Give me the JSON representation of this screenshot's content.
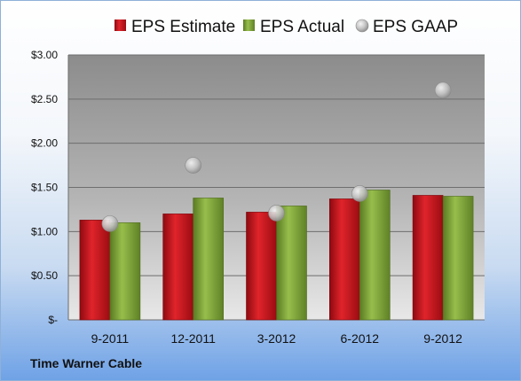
{
  "footer": {
    "company": "Time Warner Cable"
  },
  "colors": {
    "estimate": "#c8141e",
    "actual": "#7fa339",
    "gaap": "#bfbfbf"
  },
  "chart_data": {
    "type": "bar",
    "categories": [
      "9-2011",
      "12-2011",
      "3-2012",
      "6-2012",
      "9-2012"
    ],
    "series": [
      {
        "name": "EPS Estimate",
        "kind": "bar",
        "values": [
          1.13,
          1.2,
          1.22,
          1.37,
          1.41
        ]
      },
      {
        "name": "EPS Actual",
        "kind": "bar",
        "values": [
          1.1,
          1.38,
          1.29,
          1.47,
          1.4
        ]
      },
      {
        "name": "EPS GAAP",
        "kind": "scatter",
        "values": [
          1.09,
          1.75,
          1.21,
          1.43,
          2.6
        ]
      }
    ],
    "ylim": [
      0,
      3.0
    ],
    "yticks": [
      0,
      0.5,
      1.0,
      1.5,
      2.0,
      2.5,
      3.0
    ],
    "ytick_labels": [
      "$-",
      "$0.50",
      "$1.00",
      "$1.50",
      "$2.00",
      "$2.50",
      "$3.00"
    ],
    "legend_position": "top",
    "grid": true
  }
}
